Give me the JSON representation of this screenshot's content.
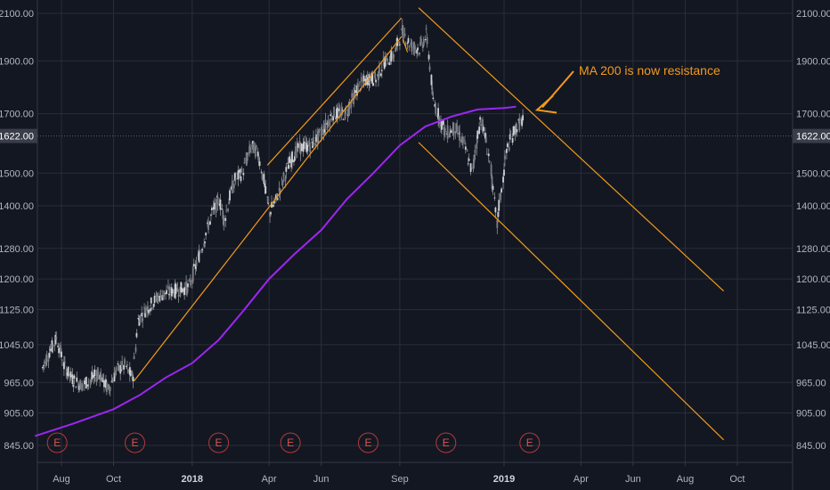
{
  "chart_data": {
    "type": "line",
    "title": "",
    "xlabel": "",
    "ylabel": "",
    "ylim": [
      820,
      2160
    ],
    "y_scale": "log",
    "grid": true,
    "x_tick_labels": [
      "Aug",
      "Oct",
      "2018",
      "Apr",
      "Jun",
      "Sep",
      "2019",
      "Apr",
      "Jun",
      "Aug",
      "Oct"
    ],
    "y_ticks": [
      845,
      905,
      965,
      1045,
      1125,
      1200,
      1280,
      1400,
      1500,
      1700,
      1900,
      2100
    ],
    "y_tick_labels": [
      "845.00",
      "905.00",
      "965.00",
      "1045.00",
      "1125.00",
      "1200.00",
      "1280.00",
      "1400.00",
      "1500.00",
      "1700.00",
      "1900.00",
      "2100.00"
    ],
    "current_price": 1622,
    "current_price_label": "1622.00",
    "earnings_marker_label": "E",
    "earnings_markers": [
      "2017-07-27",
      "2017-10-26",
      "2018-02-01",
      "2018-04-26",
      "2018-07-26",
      "2018-10-25",
      "2019-01-31"
    ],
    "series": [
      {
        "type": "candles",
        "color": "#b7b9be",
        "values": [
          [
            "2017-07-10",
            995
          ],
          [
            "2017-07-20",
            1035
          ],
          [
            "2017-07-27",
            1060
          ],
          [
            "2017-08-04",
            1000
          ],
          [
            "2017-08-15",
            970
          ],
          [
            "2017-08-25",
            960
          ],
          [
            "2017-09-05",
            970
          ],
          [
            "2017-09-15",
            985
          ],
          [
            "2017-09-25",
            950
          ],
          [
            "2017-10-05",
            990
          ],
          [
            "2017-10-15",
            1000
          ],
          [
            "2017-10-24",
            972
          ],
          [
            "2017-10-30",
            1100
          ],
          [
            "2017-11-10",
            1130
          ],
          [
            "2017-11-25",
            1160
          ],
          [
            "2017-12-10",
            1170
          ],
          [
            "2017-12-29",
            1180
          ],
          [
            "2018-01-15",
            1300
          ],
          [
            "2018-01-25",
            1380
          ],
          [
            "2018-02-02",
            1420
          ],
          [
            "2018-02-08",
            1360
          ],
          [
            "2018-02-20",
            1480
          ],
          [
            "2018-03-01",
            1500
          ],
          [
            "2018-03-12",
            1590
          ],
          [
            "2018-03-20",
            1560
          ],
          [
            "2018-04-02",
            1380
          ],
          [
            "2018-04-10",
            1420
          ],
          [
            "2018-04-25",
            1530
          ],
          [
            "2018-05-05",
            1580
          ],
          [
            "2018-05-20",
            1590
          ],
          [
            "2018-06-01",
            1630
          ],
          [
            "2018-06-15",
            1700
          ],
          [
            "2018-06-30",
            1700
          ],
          [
            "2018-07-15",
            1800
          ],
          [
            "2018-07-26",
            1830
          ],
          [
            "2018-08-05",
            1830
          ],
          [
            "2018-08-15",
            1900
          ],
          [
            "2018-08-25",
            1920
          ],
          [
            "2018-09-04",
            2020
          ],
          [
            "2018-09-15",
            1960
          ],
          [
            "2018-09-25",
            1950
          ],
          [
            "2018-10-03",
            2010
          ],
          [
            "2018-10-10",
            1750
          ],
          [
            "2018-10-25",
            1630
          ],
          [
            "2018-11-05",
            1650
          ],
          [
            "2018-11-15",
            1600
          ],
          [
            "2018-11-25",
            1500
          ],
          [
            "2018-12-05",
            1690
          ],
          [
            "2018-12-15",
            1550
          ],
          [
            "2018-12-24",
            1345
          ],
          [
            "2019-01-05",
            1580
          ],
          [
            "2019-01-15",
            1650
          ],
          [
            "2019-01-25",
            1680
          ]
        ]
      },
      {
        "name": "MA 200",
        "type": "line",
        "color": "#9c27f0",
        "values": [
          [
            "2017-07-01",
            862
          ],
          [
            "2017-08-15",
            885
          ],
          [
            "2017-10-01",
            912
          ],
          [
            "2017-11-01",
            940
          ],
          [
            "2017-12-01",
            975
          ],
          [
            "2018-01-01",
            1005
          ],
          [
            "2018-02-01",
            1055
          ],
          [
            "2018-03-01",
            1120
          ],
          [
            "2018-04-01",
            1200
          ],
          [
            "2018-05-01",
            1265
          ],
          [
            "2018-06-01",
            1330
          ],
          [
            "2018-07-01",
            1420
          ],
          [
            "2018-08-01",
            1500
          ],
          [
            "2018-09-01",
            1590
          ],
          [
            "2018-10-01",
            1655
          ],
          [
            "2018-11-01",
            1690
          ],
          [
            "2018-12-01",
            1715
          ],
          [
            "2019-01-01",
            1720
          ],
          [
            "2019-01-15",
            1725
          ]
        ]
      }
    ],
    "trendlines": [
      {
        "color": "#f29a1c",
        "values": [
          [
            "2017-10-25",
            968
          ],
          [
            "2018-09-03",
            2000
          ]
        ]
      },
      {
        "color": "#f29a1c",
        "values": [
          [
            "2018-03-30",
            1525
          ],
          [
            "2018-09-03",
            2080
          ]
        ]
      },
      {
        "color": "#f29a1c",
        "values": [
          [
            "2018-09-10",
            1935
          ],
          [
            "2018-09-03",
            1985
          ],
          [
            "2018-03-30",
            1525
          ]
        ],
        "render": "short"
      },
      {
        "color": "#f29a1c",
        "values": [
          [
            "2018-09-23",
            2125
          ],
          [
            "2019-09-15",
            1170
          ]
        ]
      },
      {
        "color": "#f29a1c",
        "values": [
          [
            "2018-09-23",
            1600
          ],
          [
            "2019-09-15",
            855
          ]
        ]
      }
    ],
    "annotations": [
      {
        "text": "MA 200 is now resistance",
        "color": "#f29a1c",
        "date": "2019-01-25",
        "value": 1710
      }
    ]
  }
}
